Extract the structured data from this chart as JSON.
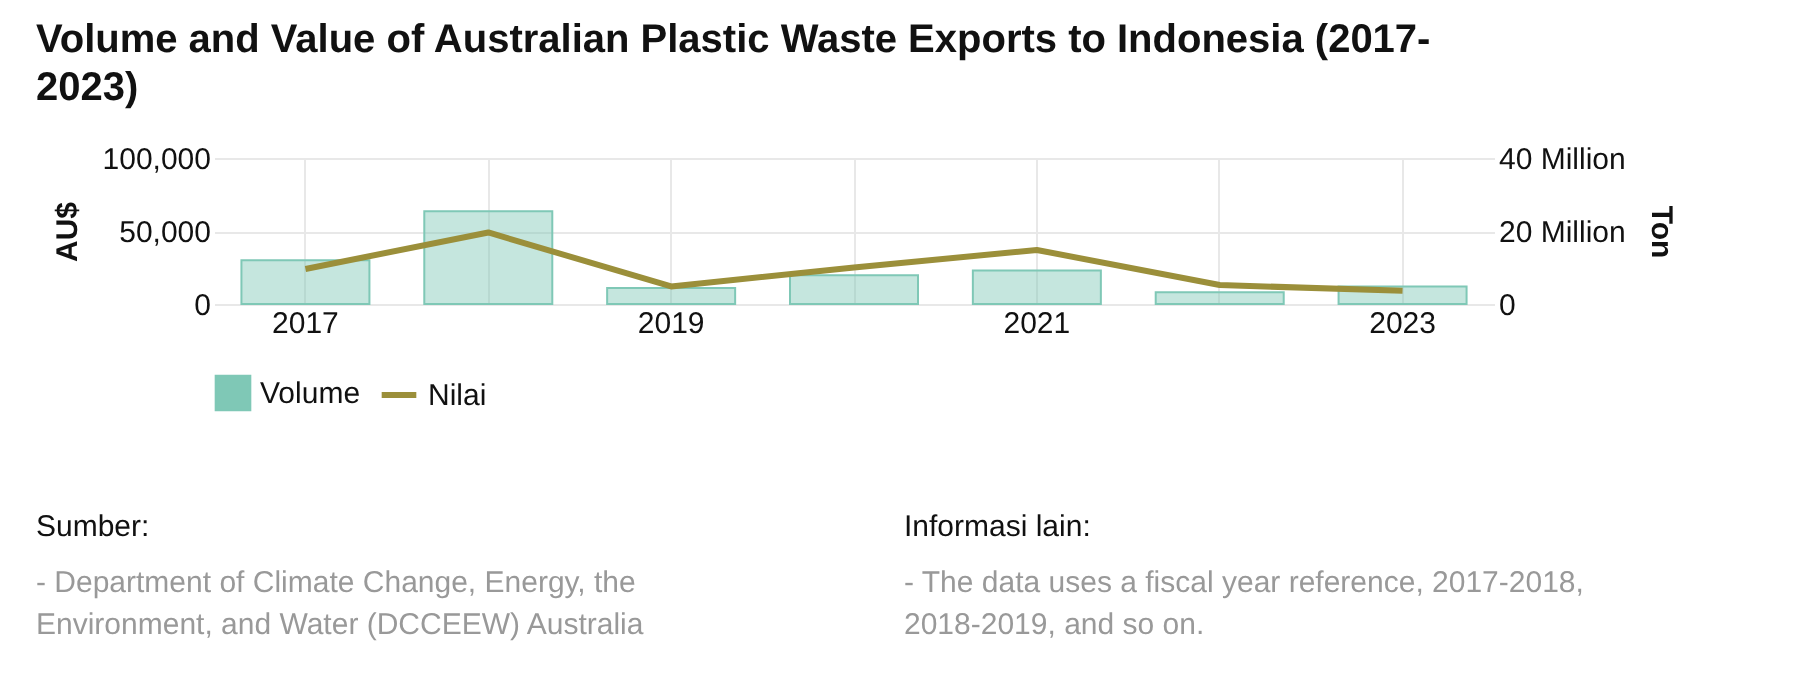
{
  "chart_data": {
    "type": "bar",
    "title": "Volume and Value of Australian Plastic Waste Exports to Indonesia (2017-2023)",
    "categories": [
      "2017",
      null,
      "2019",
      null,
      "2021",
      null,
      "2023"
    ],
    "series": [
      {
        "name": "Volume",
        "axis": "y2",
        "color": "#7fc8b6",
        "values": [
          12,
          25.4,
          4.4,
          7.9,
          9.2,
          3.2,
          4.8
        ]
      },
      {
        "name": "Nilai",
        "type": "line",
        "color": "#9b8f3a",
        "values": [
          24000,
          49000,
          12000,
          25000,
          37000,
          13000,
          9000
        ]
      }
    ],
    "ylabel": "AU$",
    "y2label": "Ton",
    "ylim": [
      0,
      100000
    ],
    "yticks": [
      0,
      {
        "value": 50000,
        "label": "50,000"
      },
      {
        "value": 100000,
        "label": "100,000"
      }
    ],
    "y2lim": [
      0,
      40
    ],
    "y2ticks": [
      {
        "value": 0,
        "label": "0"
      },
      {
        "value": 20,
        "label": "20 Million"
      },
      {
        "value": 40,
        "label": "40 Million"
      }
    ],
    "grid": true,
    "legend": "bottom",
    "marker": "none",
    "line_style": "solid",
    "annotations": [
      "Sumber:",
      "- Department of Climate Change, Energy, the Environment, and Water (DCCEEW) Australia",
      "Informasi lain:",
      "- The data uses a fiscal year reference, 2017-2018, 2018-2019, and so on."
    ]
  }
}
